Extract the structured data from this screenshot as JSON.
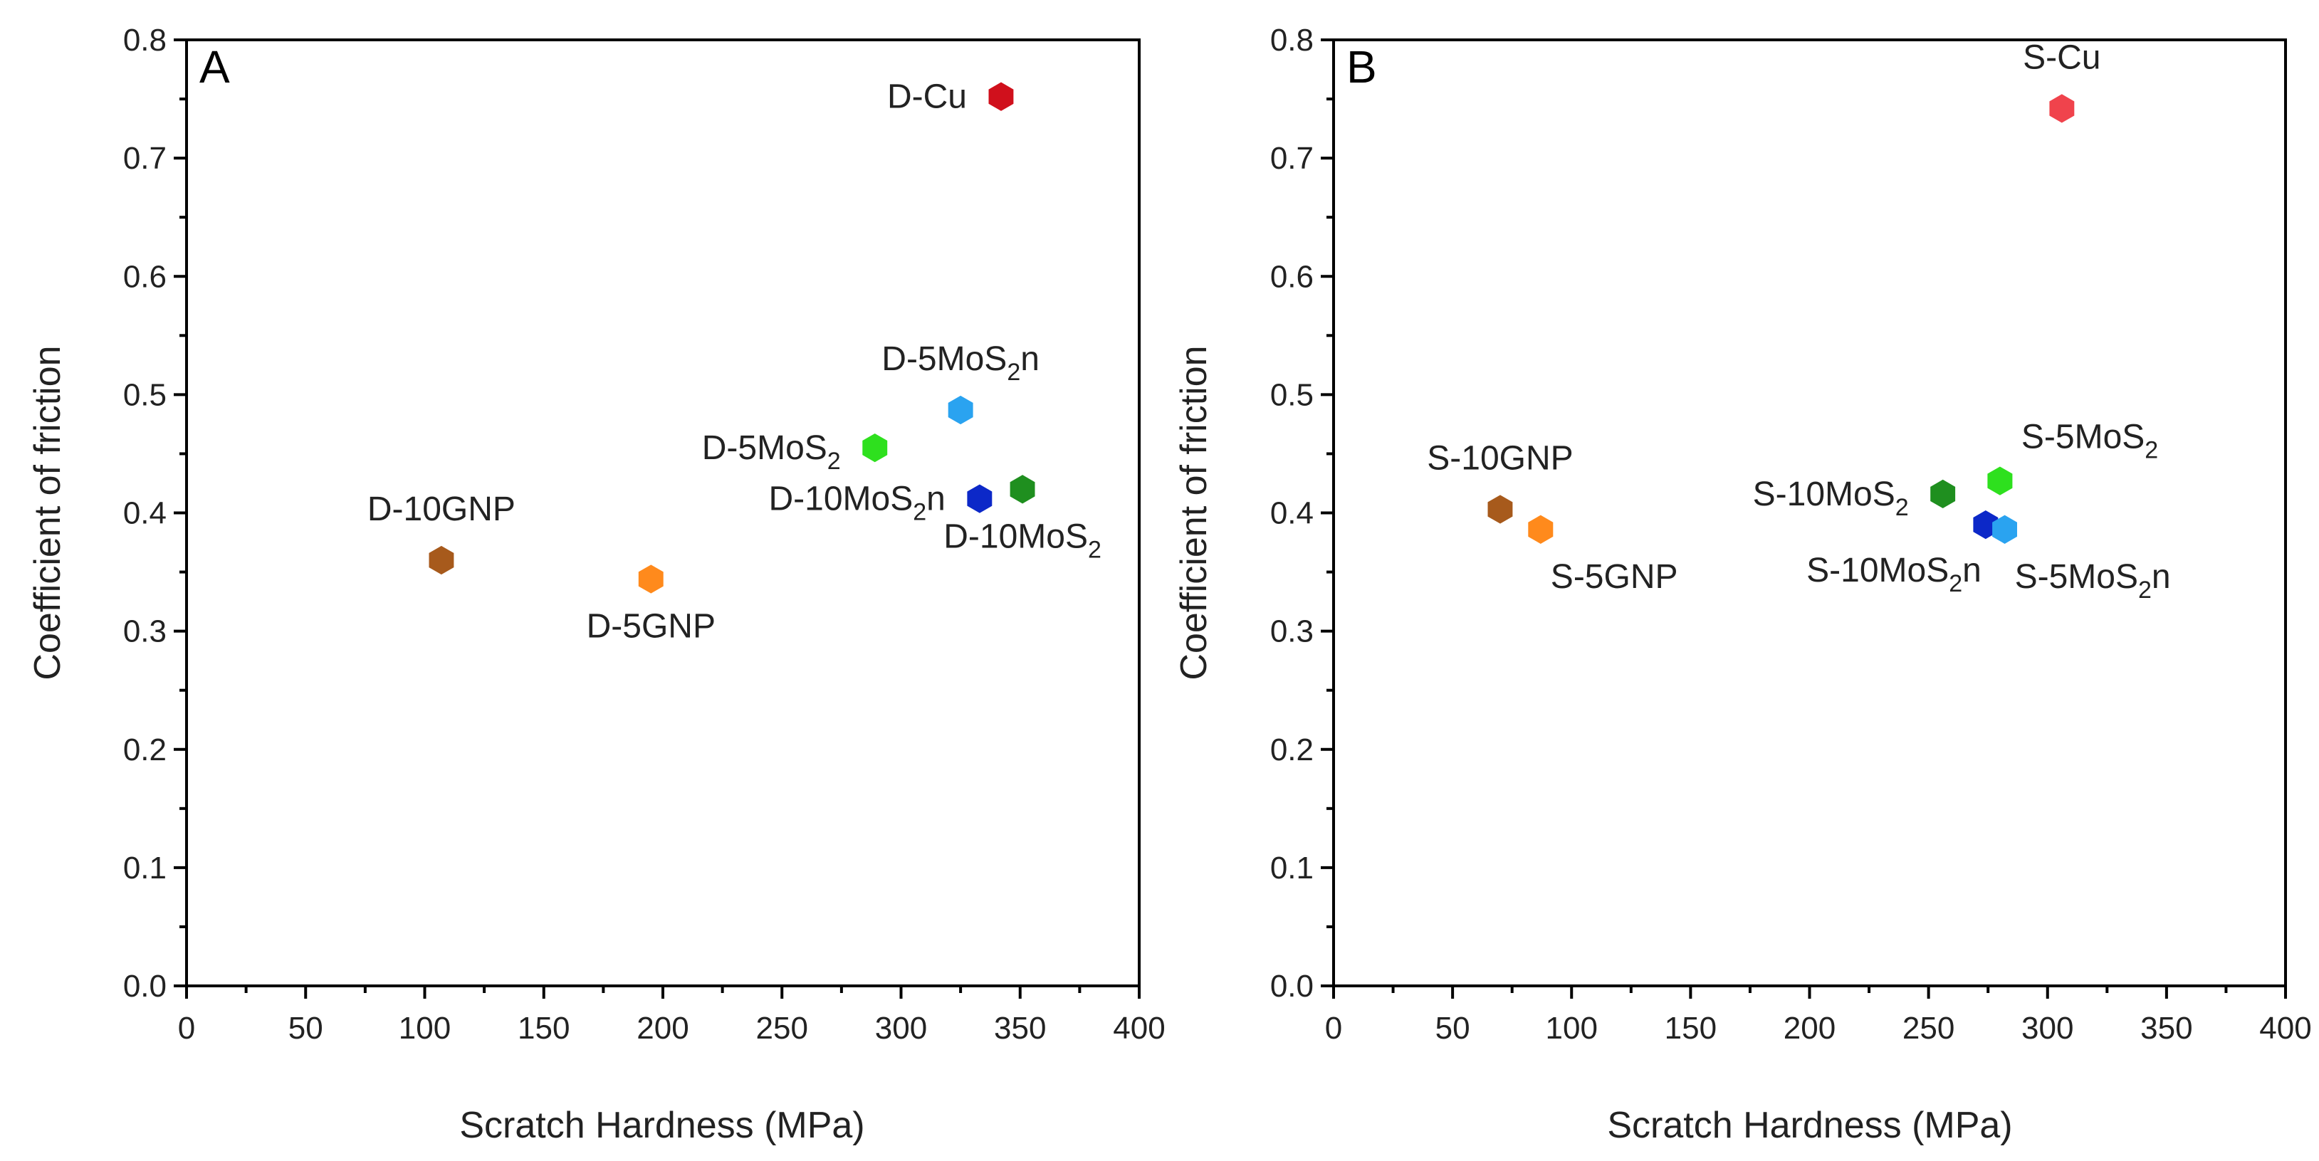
{
  "chart_data": [
    {
      "type": "scatter",
      "panel": "A",
      "xlabel": "Scratch Hardness (MPa)",
      "ylabel": "Coefficient of friction",
      "xlim": [
        0,
        400
      ],
      "ylim": [
        0.0,
        0.8
      ],
      "xticks": [
        "0",
        "50",
        "100",
        "150",
        "200",
        "250",
        "300",
        "350",
        "400"
      ],
      "yticks": [
        "0.0",
        "0.1",
        "0.2",
        "0.3",
        "0.4",
        "0.5",
        "0.6",
        "0.7",
        "0.8"
      ],
      "points": [
        {
          "name": "D-Cu",
          "label": {
            "pre": "D-Cu",
            "sub": "",
            "post": ""
          },
          "x": 342,
          "y": 0.752,
          "color": "#d0101c",
          "label_pos": "left"
        },
        {
          "name": "D-5MoS2n",
          "label": {
            "pre": "D-5MoS",
            "sub": "2",
            "post": "n"
          },
          "x": 325,
          "y": 0.487,
          "color": "#2aa3f0",
          "label_pos": "top"
        },
        {
          "name": "D-5MoS2",
          "label": {
            "pre": "D-5MoS",
            "sub": "2",
            "post": ""
          },
          "x": 289,
          "y": 0.455,
          "color": "#2ee01e",
          "label_pos": "left"
        },
        {
          "name": "D-10MoS2n",
          "label": {
            "pre": "D-10MoS",
            "sub": "2",
            "post": "n"
          },
          "x": 333,
          "y": 0.412,
          "color": "#0c28c8",
          "label_pos": "left"
        },
        {
          "name": "D-10MoS2",
          "label": {
            "pre": "D-10MoS",
            "sub": "2",
            "post": ""
          },
          "x": 351,
          "y": 0.42,
          "color": "#1f8f1f",
          "label_pos": "below"
        },
        {
          "name": "D-10GNP",
          "label": {
            "pre": "D-10GNP",
            "sub": "",
            "post": ""
          },
          "x": 107,
          "y": 0.36,
          "color": "#a75a1c",
          "label_pos": "top"
        },
        {
          "name": "D-5GNP",
          "label": {
            "pre": "D-5GNP",
            "sub": "",
            "post": ""
          },
          "x": 195,
          "y": 0.344,
          "color": "#ff8a1c",
          "label_pos": "below"
        }
      ]
    },
    {
      "type": "scatter",
      "panel": "B",
      "xlabel": "Scratch Hardness (MPa)",
      "ylabel": "Coefficient of friction",
      "xlim": [
        0,
        400
      ],
      "ylim": [
        0.0,
        0.8
      ],
      "xticks": [
        "0",
        "50",
        "100",
        "150",
        "200",
        "250",
        "300",
        "350",
        "400"
      ],
      "yticks": [
        "0.0",
        "0.1",
        "0.2",
        "0.3",
        "0.4",
        "0.5",
        "0.6",
        "0.7",
        "0.8"
      ],
      "points": [
        {
          "name": "S-Cu",
          "label": {
            "pre": "S-Cu",
            "sub": "",
            "post": ""
          },
          "x": 306,
          "y": 0.742,
          "color": "#f0434c",
          "label_pos": "top"
        },
        {
          "name": "S-5MoS2",
          "label": {
            "pre": "S-5MoS",
            "sub": "2",
            "post": ""
          },
          "x": 280,
          "y": 0.427,
          "color": "#2ee01e",
          "label_pos": "right-up"
        },
        {
          "name": "S-10MoS2",
          "label": {
            "pre": "S-10MoS",
            "sub": "2",
            "post": ""
          },
          "x": 256,
          "y": 0.416,
          "color": "#1f8f1f",
          "label_pos": "left"
        },
        {
          "name": "S-10MoS2n",
          "label": {
            "pre": "S-10MoS",
            "sub": "2",
            "post": "n"
          },
          "x": 274,
          "y": 0.39,
          "color": "#0c28c8",
          "label_pos": "below-left"
        },
        {
          "name": "S-5MoS2n",
          "label": {
            "pre": "S-5MoS",
            "sub": "2",
            "post": "n"
          },
          "x": 282,
          "y": 0.386,
          "color": "#2aa3f0",
          "label_pos": "below-right"
        },
        {
          "name": "S-10GNP",
          "label": {
            "pre": "S-10GNP",
            "sub": "",
            "post": ""
          },
          "x": 70,
          "y": 0.403,
          "color": "#a75a1c",
          "label_pos": "top"
        },
        {
          "name": "S-5GNP",
          "label": {
            "pre": "S-5GNP",
            "sub": "",
            "post": ""
          },
          "x": 87,
          "y": 0.386,
          "color": "#ff8a1c",
          "label_pos": "below-right"
        }
      ]
    }
  ]
}
